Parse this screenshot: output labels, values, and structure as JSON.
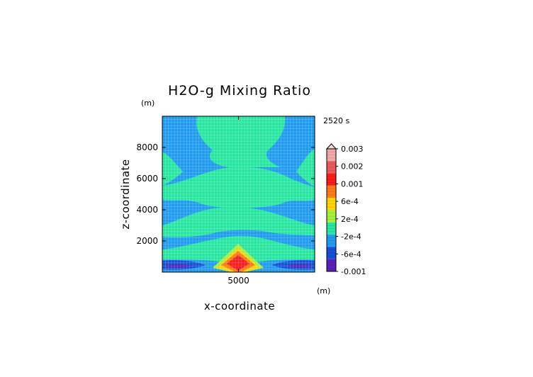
{
  "chart_data": {
    "type": "heatmap",
    "title": "H2O-g Mixing Ratio",
    "time_label": "2520 s",
    "xlabel": "x-coordinate",
    "ylabel": "z-coordinate",
    "x_unit": "(m)",
    "y_unit": "(m)",
    "x_ticks": [
      5000
    ],
    "y_ticks": [
      2000,
      4000,
      6000,
      8000
    ],
    "xlim": [
      0,
      10000
    ],
    "ylim": [
      0,
      10000
    ],
    "grid": true,
    "field_description": "Contour-filled field; max near x=5000,z=600; negative dips at z~300 near both sides; alternating bands of 2e-4 and -2e-4 above.",
    "colorbar": {
      "labels": [
        "0.003",
        "0.002",
        "0.001",
        "6e-4",
        "2e-4",
        "-2e-4",
        "-6e-4",
        "-0.001"
      ],
      "levels": [
        0.003,
        0.002,
        0.001,
        0.0006,
        0.0002,
        -0.0002,
        -0.0006,
        -0.001
      ],
      "colors": [
        "#f2a8a8",
        "#e85a5a",
        "#ff1a1a",
        "#ff7a1a",
        "#ffd400",
        "#a6f03a",
        "#27e6a0",
        "#1f9bf0",
        "#1650d8",
        "#5a1fb8"
      ]
    }
  }
}
